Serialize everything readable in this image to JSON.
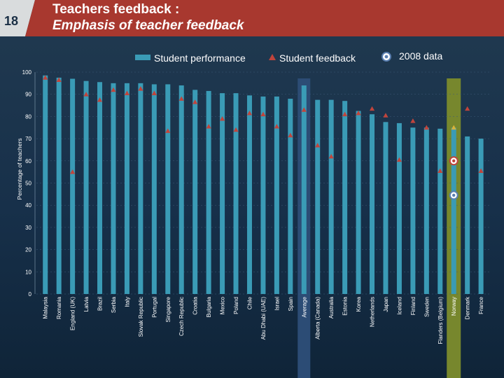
{
  "slide": {
    "number": "18",
    "title_line1": "Teachers feedback :",
    "title_line2": "Emphasis of teacher feedback"
  },
  "colors": {
    "bar": "#3a9bb6",
    "marker": "#c0443c",
    "average_band": "#2c4c75",
    "norway_band": "#77872d",
    "header_red": "#a8382f"
  },
  "chart_data": {
    "type": "bar",
    "title": "Emphasis of teacher feedback",
    "ylabel": "Percentage of teachers",
    "xlabel": "",
    "ylim": [
      0,
      100
    ],
    "yticks": [
      0,
      10,
      20,
      30,
      40,
      50,
      60,
      70,
      80,
      90,
      100
    ],
    "legend": {
      "bar_label": "Student performance",
      "marker_label": "Student feedback",
      "ref_label": "2008 data"
    },
    "categories": [
      "Malaysia",
      "Romania",
      "England (UK)",
      "Latvia",
      "Brazil",
      "Serbia",
      "Italy",
      "Slovak Republic",
      "Portugal",
      "Singapore",
      "Czech Republic",
      "Croatia",
      "Bulgaria",
      "Mexico",
      "Poland",
      "Chile",
      "Abu Dhabi (UAE)",
      "Israel",
      "Spain",
      "Average",
      "Alberta (Canada)",
      "Australia",
      "Estonia",
      "Korea",
      "Netherlands",
      "Japan",
      "Iceland",
      "Finland",
      "Sweden",
      "Flanders (Belgium)",
      "Norway",
      "Denmark",
      "France"
    ],
    "series": [
      {
        "name": "Student performance",
        "values": [
          98.5,
          97.5,
          97,
          96,
          95.5,
          95,
          95,
          95,
          94.5,
          94.5,
          94,
          92,
          91.5,
          90.5,
          90.5,
          89.5,
          89,
          89,
          88,
          94,
          87.5,
          87.5,
          87,
          82.5,
          81,
          77.5,
          77,
          75,
          75,
          74.5,
          75,
          71,
          70
        ]
      },
      {
        "name": "Student feedback",
        "values": [
          97.5,
          96.5,
          55,
          90,
          87.5,
          92,
          90.5,
          92.5,
          90.5,
          73.5,
          88,
          86.5,
          75.5,
          79,
          74,
          81.5,
          81,
          75.5,
          71.5,
          83,
          67,
          62,
          81,
          81.5,
          83.5,
          80.5,
          60.5,
          78,
          75,
          55.5,
          75,
          83.5,
          55.5
        ]
      },
      {
        "name": "2008 data (Student performance)",
        "category": "Norway",
        "value": 44.5
      },
      {
        "name": "2008 data (Student feedback)",
        "category": "Norway",
        "value": 60
      }
    ],
    "highlights": [
      "Average",
      "Norway"
    ]
  }
}
